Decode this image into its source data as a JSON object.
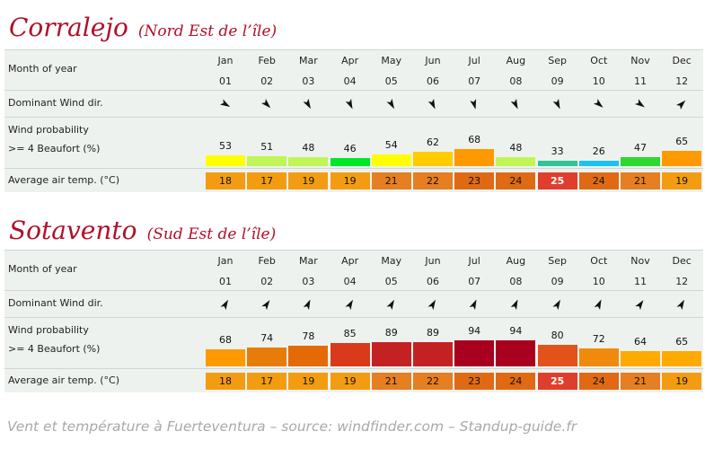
{
  "chart_data": [
    {
      "type": "table",
      "title": "Corralejo",
      "subtitle": "(Nord Est de l’île)",
      "labels": {
        "month": "Month of year",
        "wind_dir": "Dominant Wind dir.",
        "prob_line1": "Wind probability",
        "prob_line2": ">= 4 Beaufort (%)",
        "temp": "Average air temp. (°C)"
      },
      "months": [
        "Jan",
        "Feb",
        "Mar",
        "Apr",
        "May",
        "Jun",
        "Jul",
        "Aug",
        "Sep",
        "Oct",
        "Nov",
        "Dec"
      ],
      "month_numbers": [
        "01",
        "02",
        "03",
        "04",
        "05",
        "06",
        "07",
        "08",
        "09",
        "10",
        "11",
        "12"
      ],
      "wind_dir_deg": [
        120,
        135,
        150,
        155,
        150,
        155,
        165,
        155,
        155,
        130,
        125,
        45
      ],
      "wind_probability": [
        53,
        51,
        48,
        46,
        54,
        62,
        68,
        48,
        33,
        26,
        47,
        65
      ],
      "wind_probability_colors": [
        "#ffff00",
        "#c0f556",
        "#c0f556",
        "#00e629",
        "#ffff00",
        "#ffcc00",
        "#ff9900",
        "#c0f556",
        "#2fc497",
        "#1cc2f2",
        "#2ed82e",
        "#ff9900"
      ],
      "air_temp": [
        18,
        17,
        19,
        19,
        21,
        22,
        23,
        24,
        25,
        24,
        21,
        19
      ],
      "air_temp_colors": [
        "#f39c12",
        "#f39c12",
        "#f39c12",
        "#f39c12",
        "#e67e22",
        "#e67e22",
        "#e06a14",
        "#e06a14",
        "#e03e2d",
        "#e06a14",
        "#e67e22",
        "#f39c12"
      ],
      "bar_scale_max": 100
    },
    {
      "type": "table",
      "title": "Sotavento",
      "subtitle": "(Sud Est de l’île)",
      "labels": {
        "month": "Month of year",
        "wind_dir": "Dominant Wind dir.",
        "prob_line1": "Wind probability",
        "prob_line2": ">= 4 Beaufort (%)",
        "temp": "Average air temp. (°C)"
      },
      "months": [
        "Jan",
        "Feb",
        "Mar",
        "Apr",
        "May",
        "Jun",
        "Jul",
        "Aug",
        "Sep",
        "Oct",
        "Nov",
        "Dec"
      ],
      "month_numbers": [
        "01",
        "02",
        "03",
        "04",
        "05",
        "06",
        "07",
        "08",
        "09",
        "10",
        "11",
        "12"
      ],
      "wind_dir_deg": [
        30,
        35,
        25,
        30,
        30,
        30,
        25,
        25,
        30,
        25,
        35,
        30
      ],
      "wind_probability": [
        68,
        74,
        78,
        85,
        89,
        89,
        94,
        94,
        80,
        72,
        64,
        65
      ],
      "wind_probability_colors": [
        "#ff9900",
        "#e87c0a",
        "#e46a08",
        "#d93a1a",
        "#c42222",
        "#c42222",
        "#a8001e",
        "#a8001e",
        "#e2521a",
        "#ef8a0c",
        "#ffaa00",
        "#ffaa00"
      ],
      "air_temp": [
        18,
        17,
        19,
        19,
        21,
        22,
        23,
        24,
        25,
        24,
        21,
        19
      ],
      "air_temp_colors": [
        "#f39c12",
        "#f39c12",
        "#f39c12",
        "#f39c12",
        "#e67e22",
        "#e67e22",
        "#e06a14",
        "#e06a14",
        "#e03e2d",
        "#e06a14",
        "#e67e22",
        "#f39c12"
      ],
      "bar_scale_max": 100
    }
  ],
  "footer": "Vent et température à Fuerteventura – source: windfinder.com – Standup-guide.fr"
}
